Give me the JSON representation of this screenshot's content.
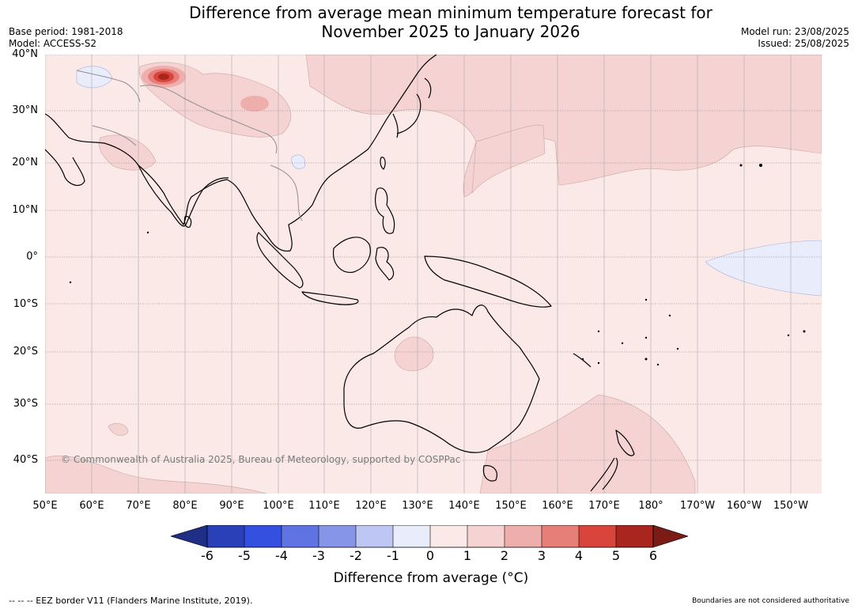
{
  "header": {
    "title_line1": "Difference from average mean minimum temperature forecast for",
    "title_line2": "November 2025 to January 2026",
    "base_period": "Base period: 1981-2018",
    "model": "Model: ACCESS-S2",
    "model_run": "Model run: 23/08/2025",
    "issued": "Issued: 25/08/2025"
  },
  "map": {
    "lat_labels": [
      "40°N",
      "30°N",
      "20°N",
      "10°N",
      "0°",
      "10°S",
      "20°S",
      "30°S",
      "40°S"
    ],
    "lon_labels": [
      "50°E",
      "60°E",
      "70°E",
      "80°E",
      "90°E",
      "100°E",
      "110°E",
      "120°E",
      "130°E",
      "140°E",
      "150°E",
      "160°E",
      "170°E",
      "180°",
      "170°W",
      "160°W",
      "150°W"
    ],
    "copyright": "© Commonwealth of Australia 2025, Bureau of Meteorology, supported by COSPPac",
    "colors": {
      "background_anomaly_0_1": "#fbe9e7",
      "anomaly_1_2": "#f4d3d2",
      "anomaly_neg1_0": "#e8ecfb",
      "land_outline": "#000000",
      "border": "#8e8e8e",
      "gridline": "#888888"
    }
  },
  "colorbar": {
    "ticks": [
      "-6",
      "-5",
      "-4",
      "-3",
      "-2",
      "-1",
      "0",
      "1",
      "2",
      "3",
      "4",
      "5",
      "6"
    ],
    "colors": [
      "#1f2f86",
      "#2a40b8",
      "#3450e0",
      "#5f74e2",
      "#8795e8",
      "#bec6f3",
      "#e8ecfb",
      "#fbe9e7",
      "#f4d3d2",
      "#eeaeab",
      "#e77f79",
      "#d9443c",
      "#a8261e",
      "#7a1b15"
    ],
    "label": "Difference from average (°C)"
  },
  "footer": {
    "eez_note": "--  --  -- EEZ border V11 (Flanders Marine Institute, 2019).",
    "boundaries_note": "Boundaries are not considered authoritative"
  }
}
